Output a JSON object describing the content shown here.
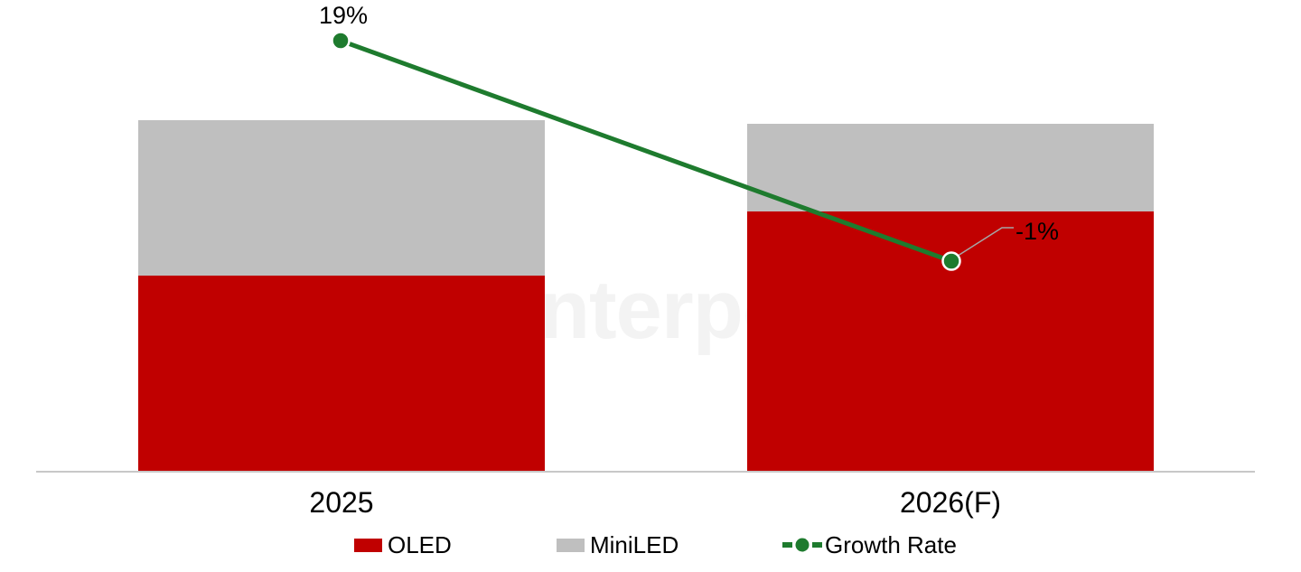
{
  "watermark": {
    "text": "Counterpoint"
  },
  "chart_data": {
    "type": "bar",
    "subtype": "stacked-bars-with-growth-rate-line",
    "categories": [
      "2025",
      "2026(F)"
    ],
    "series": [
      {
        "name": "OLED",
        "kind": "bar",
        "color": "#c00000",
        "values": [
          56,
          74
        ]
      },
      {
        "name": "MiniLED",
        "kind": "bar",
        "color": "#bfbfbf",
        "values": [
          44,
          25
        ]
      },
      {
        "name": "Growth Rate",
        "kind": "line",
        "color": "#1e7b2e",
        "values": [
          19,
          -1
        ],
        "point_labels": [
          "19%",
          "-1%"
        ]
      }
    ],
    "value_axis": {
      "visible": false,
      "note": "bar values estimated, indexed so 2025 total = 100"
    },
    "grid": false,
    "legend_position": "bottom",
    "category_axis_line_color": "#c8c8c8",
    "leader_line_color": "#a6a6a6"
  }
}
